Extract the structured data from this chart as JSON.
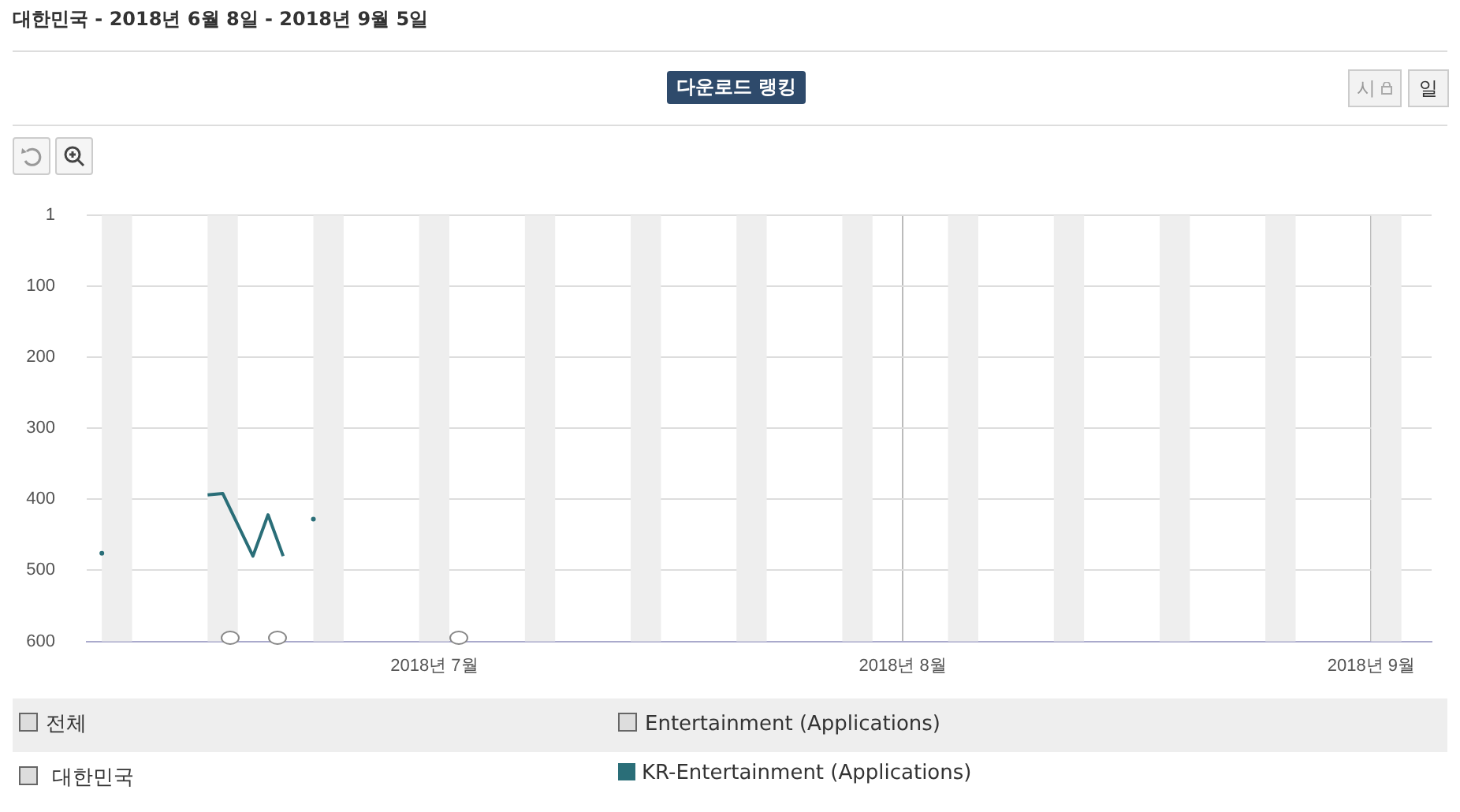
{
  "chart_data": {
    "type": "line",
    "title": "다운로드 랭킹",
    "subtitle": "대한민국 - 2018년 6월 8일 - 2018년 9월 5일",
    "annotations": [
      "전체",
      "Entertainment (Applications)",
      "대한민국",
      "시",
      "일"
    ],
    "x": [
      "2018-06-09",
      "2018-06-10",
      "2018-06-16",
      "2018-06-17",
      "2018-06-19",
      "2018-06-20",
      "2018-06-21",
      "2018-06-22",
      "2018-06-23"
    ],
    "series": [
      {
        "name": "KR-Entertainment (Applications)",
        "color": "#2a6e78",
        "values": [
          476,
          null,
          394,
          392,
          480,
          422,
          480,
          null,
          428
        ]
      }
    ],
    "xlim": [
      "2018-06-08",
      "2018-09-05"
    ],
    "xticks": [
      {
        "value": "2018-07-01",
        "label": "2018년 7월"
      },
      {
        "value": "2018-08-01",
        "label": "2018년 8월"
      },
      {
        "value": "2018-09-01",
        "label": "2018년 9월"
      }
    ],
    "ylim": [
      600,
      1
    ],
    "yticks": [
      1,
      100,
      200,
      300,
      400,
      500,
      600
    ],
    "bands": [
      {
        "axis": "x",
        "from": "2018-06-09",
        "to": "2018-06-11",
        "color": "#eeeeee"
      },
      {
        "axis": "x",
        "from": "2018-06-16",
        "to": "2018-06-18",
        "color": "#eeeeee"
      },
      {
        "axis": "x",
        "from": "2018-06-23",
        "to": "2018-06-25",
        "color": "#eeeeee"
      },
      {
        "axis": "x",
        "from": "2018-06-30",
        "to": "2018-07-02",
        "color": "#eeeeee"
      },
      {
        "axis": "x",
        "from": "2018-07-07",
        "to": "2018-07-09",
        "color": "#eeeeee"
      },
      {
        "axis": "x",
        "from": "2018-07-14",
        "to": "2018-07-16",
        "color": "#eeeeee"
      },
      {
        "axis": "x",
        "from": "2018-07-21",
        "to": "2018-07-23",
        "color": "#eeeeee"
      },
      {
        "axis": "x",
        "from": "2018-07-28",
        "to": "2018-07-30",
        "color": "#eeeeee"
      },
      {
        "axis": "x",
        "from": "2018-08-04",
        "to": "2018-08-06",
        "color": "#eeeeee"
      },
      {
        "axis": "x",
        "from": "2018-08-11",
        "to": "2018-08-13",
        "color": "#eeeeee"
      },
      {
        "axis": "x",
        "from": "2018-08-18",
        "to": "2018-08-20",
        "color": "#eeeeee"
      },
      {
        "axis": "x",
        "from": "2018-08-25",
        "to": "2018-08-27",
        "color": "#eeeeee"
      },
      {
        "axis": "x",
        "from": "2018-09-01",
        "to": "2018-09-03",
        "color": "#eeeeee"
      }
    ],
    "grid": true,
    "legend": "bottom"
  }
}
